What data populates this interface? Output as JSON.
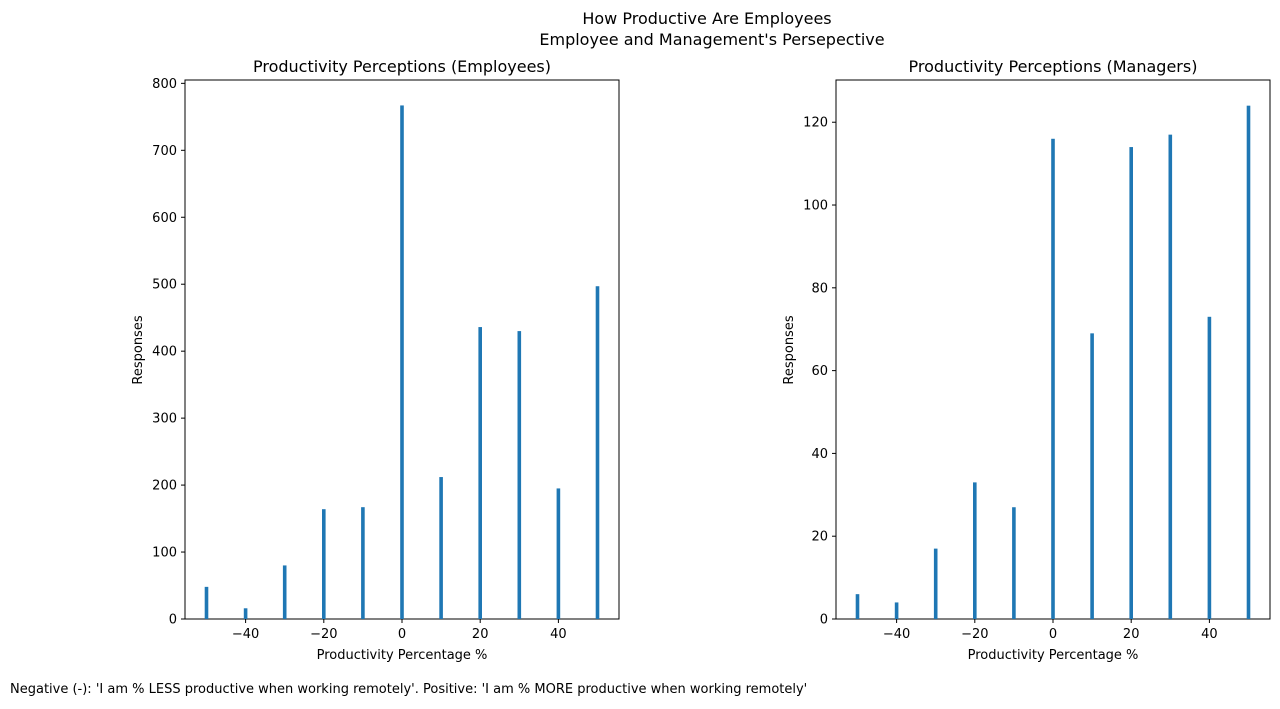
{
  "figure": {
    "suptitle_line1": "How Productive Are Employees",
    "suptitle_line2": "Employee and Management's Persepective",
    "caption": "Negative (-): 'I am % LESS productive when working remotely'. Positive: 'I am % MORE productive when working remotely'",
    "bar_color": "#1f77b4"
  },
  "chart_data": [
    {
      "type": "bar",
      "title": "Productivity Perceptions (Employees)",
      "xlabel": "Productivity Percentage %",
      "ylabel": "Responses",
      "x": [
        -50,
        -40,
        -30,
        -20,
        -10,
        0,
        10,
        20,
        30,
        40,
        50
      ],
      "values": [
        48,
        16,
        80,
        164,
        167,
        767,
        212,
        436,
        430,
        195,
        497
      ],
      "xlim": [
        -55.5,
        55.5
      ],
      "ylim": [
        0,
        805
      ],
      "xticks": [
        -40,
        -20,
        0,
        20,
        40
      ],
      "xtick_labels": [
        "−40",
        "−20",
        "0",
        "20",
        "40"
      ],
      "yticks": [
        0,
        100,
        200,
        300,
        400,
        500,
        600,
        700,
        800
      ],
      "ytick_labels": [
        "0",
        "100",
        "200",
        "300",
        "400",
        "500",
        "600",
        "700",
        "800"
      ],
      "grid": false
    },
    {
      "type": "bar",
      "title": "Productivity Perceptions (Managers)",
      "xlabel": "Productivity Percentage %",
      "ylabel": "Responses",
      "x": [
        -50,
        -40,
        -30,
        -20,
        -10,
        0,
        10,
        20,
        30,
        40,
        50
      ],
      "values": [
        6,
        4,
        17,
        33,
        27,
        116,
        69,
        114,
        117,
        73,
        124
      ],
      "xlim": [
        -55.5,
        55.5
      ],
      "ylim": [
        0,
        130.2
      ],
      "xticks": [
        -40,
        -20,
        0,
        20,
        40
      ],
      "xtick_labels": [
        "−40",
        "−20",
        "0",
        "20",
        "40"
      ],
      "yticks": [
        0,
        20,
        40,
        60,
        80,
        100,
        120
      ],
      "ytick_labels": [
        "0",
        "20",
        "40",
        "60",
        "80",
        "100",
        "120"
      ],
      "grid": false
    }
  ]
}
